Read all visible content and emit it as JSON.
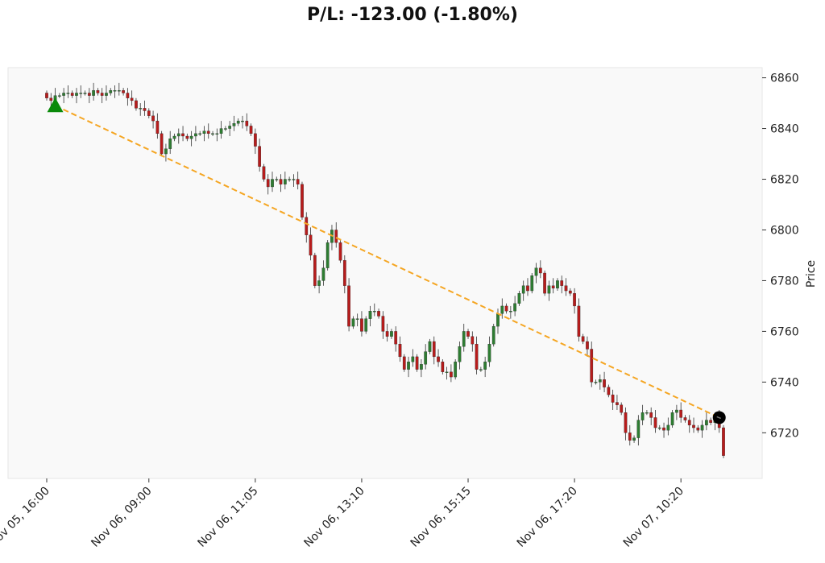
{
  "chart_data": {
    "type": "candlestick",
    "title": "P/L: -123.00 (-1.80%)",
    "ylabel": "Price",
    "xlabel": "",
    "ylim": [
      6702,
      6864
    ],
    "yticks": [
      6720,
      6740,
      6760,
      6780,
      6800,
      6820,
      6840,
      6860
    ],
    "xtick_labels": [
      "Nov 05, 16:00",
      "Nov 06, 09:00",
      "Nov 06, 11:05",
      "Nov 06, 13:10",
      "Nov 06, 15:15",
      "Nov 06, 17:20",
      "Nov 07, 10:20"
    ],
    "bar_count": 160,
    "xtick_bar_index": [
      0,
      24,
      49,
      74,
      99,
      124,
      149
    ],
    "grid": false,
    "colors": {
      "up": "#2e7d32",
      "down": "#b71c1c",
      "wick": "#333333",
      "trend": "#f5a623",
      "entry": "#0a8a0a",
      "exit": "#000000",
      "plot_bg": "#f9f9f9"
    },
    "entry_marker": {
      "bar_index": 2,
      "price": 6849
    },
    "exit_marker": {
      "bar_index": 158,
      "price": 6726
    },
    "close_series": [
      6852,
      6851,
      6853,
      6853,
      6854,
      6854,
      6853,
      6854,
      6854,
      6854,
      6853,
      6855,
      6854,
      6853,
      6854,
      6855,
      6855,
      6855,
      6854,
      6852,
      6851,
      6848,
      6848,
      6847,
      6845,
      6843,
      6838,
      6830,
      6832,
      6836,
      6837,
      6838,
      6837,
      6836,
      6837,
      6838,
      6838,
      6839,
      6838,
      6838,
      6838,
      6840,
      6840,
      6841,
      6842,
      6843,
      6843,
      6841,
      6838,
      6833,
      6825,
      6820,
      6817,
      6820,
      6820,
      6818,
      6820,
      6820,
      6820,
      6818,
      6805,
      6798,
      6790,
      6778,
      6780,
      6785,
      6795,
      6800,
      6795,
      6788,
      6778,
      6762,
      6765,
      6765,
      6760,
      6765,
      6768,
      6768,
      6766,
      6760,
      6758,
      6760,
      6755,
      6750,
      6745,
      6748,
      6750,
      6745,
      6747,
      6752,
      6756,
      6750,
      6748,
      6744,
      6744,
      6742,
      6748,
      6754,
      6760,
      6758,
      6755,
      6745,
      6745,
      6748,
      6755,
      6762,
      6767,
      6770,
      6768,
      6768,
      6771,
      6775,
      6778,
      6776,
      6782,
      6785,
      6783,
      6775,
      6778,
      6777,
      6780,
      6778,
      6776,
      6775,
      6770,
      6758,
      6756,
      6753,
      6740,
      6740,
      6741,
      6738,
      6735,
      6732,
      6731,
      6728,
      6720,
      6717,
      6718,
      6725,
      6728,
      6728,
      6726,
      6722,
      6722,
      6721,
      6723,
      6728,
      6729,
      6726,
      6725,
      6723,
      6722,
      6721,
      6723,
      6725,
      6724,
      6726,
      6722,
      6711
    ]
  }
}
